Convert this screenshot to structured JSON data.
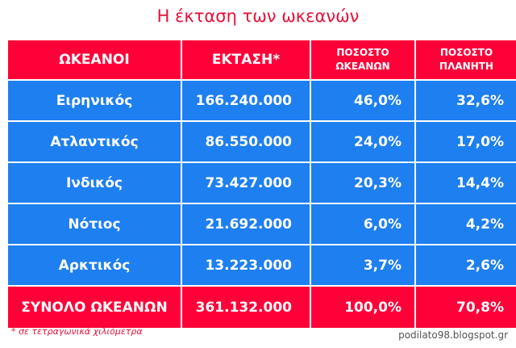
{
  "title": "Η έκταση των ωκεανών",
  "headers": {
    "oceans": "ΩΚΕΑΝΟΙ",
    "area": "ΕΚΤΑΣΗ*",
    "pct_oceans_line1": "ΠΟΣΟΣΤΟ",
    "pct_oceans_line2": "ΩΚΕΑΝΩΝ",
    "pct_planet_line1": "ΠΟΣΟΣΤΟ",
    "pct_planet_line2": "ΠΛΑΝΗΤΗ"
  },
  "rows": [
    {
      "name": "Ειρηνικός",
      "area": "166.240.000",
      "pct_oceans": "46,0%",
      "pct_planet": "32,6%"
    },
    {
      "name": "Ατλαντικός",
      "area": "86.550.000",
      "pct_oceans": "24,0%",
      "pct_planet": "17,0%"
    },
    {
      "name": "Ινδικός",
      "area": "73.427.000",
      "pct_oceans": "20,3%",
      "pct_planet": "14,4%"
    },
    {
      "name": "Νότιος",
      "area": "21.692.000",
      "pct_oceans": "6,0%",
      "pct_planet": "4,2%"
    },
    {
      "name": "Αρκτικός",
      "area": "13.223.000",
      "pct_oceans": "3,7%",
      "pct_planet": "2,6%"
    }
  ],
  "total": {
    "name": "ΣΥΝΟΛΟ ΩΚΕΑΝΩΝ",
    "area": "361.132.000",
    "pct_oceans": "100,0%",
    "pct_planet": "70,8%"
  },
  "footnote": "* σε τετραγωνικά χιλιόμετρα",
  "credit": "podilato98.blogspot.gr",
  "colors": {
    "header_red": "#ff0038",
    "row_blue": "#1e7ff0",
    "title_red": "#e8103a"
  }
}
